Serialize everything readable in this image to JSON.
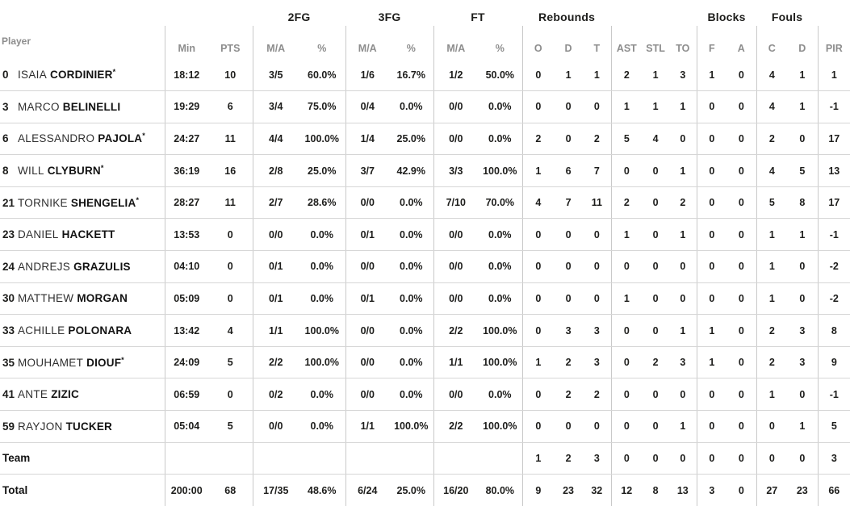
{
  "header": {
    "player_label": "Player",
    "starter_mark": "*",
    "groups": {
      "fg2": "2FG",
      "fg3": "3FG",
      "ft": "FT",
      "rebounds": "Rebounds",
      "blocks": "Blocks",
      "fouls": "Fouls"
    },
    "cols": {
      "min": "Min",
      "pts": "PTS",
      "ma": "M/A",
      "pct": "%",
      "o": "O",
      "d": "D",
      "t": "T",
      "ast": "AST",
      "stl": "STL",
      "to": "TO",
      "f": "F",
      "a": "A",
      "c": "C",
      "d2": "D",
      "pir": "PIR"
    }
  },
  "colors": {
    "dark_text": "#1d1d1b",
    "gray_label": "#8d8d8d",
    "vertical_line": "#c9c9c9",
    "horizontal_line": "#d6d6d6",
    "background": "#ffffff"
  },
  "stat_keys": [
    "min",
    "pts",
    "2fg-ma",
    "2fg-pct",
    "3fg-ma",
    "3fg-pct",
    "ft-ma",
    "ft-pct",
    "reb-o",
    "reb-d",
    "reb-t",
    "ast",
    "stl",
    "to",
    "blk-f",
    "blk-a",
    "foul-c",
    "foul-d",
    "pir"
  ],
  "rows": [
    {
      "type": "player",
      "no": "0",
      "first": "ISAIA",
      "last": "CORDINIER",
      "starter": true,
      "stats": [
        "18:12",
        "10",
        "3/5",
        "60.0%",
        "1/6",
        "16.7%",
        "1/2",
        "50.0%",
        "0",
        "1",
        "1",
        "2",
        "1",
        "3",
        "1",
        "0",
        "4",
        "1",
        "1"
      ]
    },
    {
      "type": "player",
      "no": "3",
      "first": "MARCO",
      "last": "BELINELLI",
      "starter": false,
      "stats": [
        "19:29",
        "6",
        "3/4",
        "75.0%",
        "0/4",
        "0.0%",
        "0/0",
        "0.0%",
        "0",
        "0",
        "0",
        "1",
        "1",
        "1",
        "0",
        "0",
        "4",
        "1",
        "-1"
      ]
    },
    {
      "type": "player",
      "no": "6",
      "first": "ALESSANDRO",
      "last": "PAJOLA",
      "starter": true,
      "stats": [
        "24:27",
        "11",
        "4/4",
        "100.0%",
        "1/4",
        "25.0%",
        "0/0",
        "0.0%",
        "2",
        "0",
        "2",
        "5",
        "4",
        "0",
        "0",
        "0",
        "2",
        "0",
        "17"
      ]
    },
    {
      "type": "player",
      "no": "8",
      "first": "WILL",
      "last": "CLYBURN",
      "starter": true,
      "stats": [
        "36:19",
        "16",
        "2/8",
        "25.0%",
        "3/7",
        "42.9%",
        "3/3",
        "100.0%",
        "1",
        "6",
        "7",
        "0",
        "0",
        "1",
        "0",
        "0",
        "4",
        "5",
        "13"
      ]
    },
    {
      "type": "player",
      "no": "21",
      "first": "TORNIKE",
      "last": "SHENGELIA",
      "starter": true,
      "stats": [
        "28:27",
        "11",
        "2/7",
        "28.6%",
        "0/0",
        "0.0%",
        "7/10",
        "70.0%",
        "4",
        "7",
        "11",
        "2",
        "0",
        "2",
        "0",
        "0",
        "5",
        "8",
        "17"
      ]
    },
    {
      "type": "player",
      "no": "23",
      "first": "DANIEL",
      "last": "HACKETT",
      "starter": false,
      "stats": [
        "13:53",
        "0",
        "0/0",
        "0.0%",
        "0/1",
        "0.0%",
        "0/0",
        "0.0%",
        "0",
        "0",
        "0",
        "1",
        "0",
        "1",
        "0",
        "0",
        "1",
        "1",
        "-1"
      ]
    },
    {
      "type": "player",
      "no": "24",
      "first": "ANDREJS",
      "last": "GRAZULIS",
      "starter": false,
      "stats": [
        "04:10",
        "0",
        "0/1",
        "0.0%",
        "0/0",
        "0.0%",
        "0/0",
        "0.0%",
        "0",
        "0",
        "0",
        "0",
        "0",
        "0",
        "0",
        "0",
        "1",
        "0",
        "-2"
      ]
    },
    {
      "type": "player",
      "no": "30",
      "first": "MATTHEW",
      "last": "MORGAN",
      "starter": false,
      "stats": [
        "05:09",
        "0",
        "0/1",
        "0.0%",
        "0/1",
        "0.0%",
        "0/0",
        "0.0%",
        "0",
        "0",
        "0",
        "1",
        "0",
        "0",
        "0",
        "0",
        "1",
        "0",
        "-2"
      ]
    },
    {
      "type": "player",
      "no": "33",
      "first": "ACHILLE",
      "last": "POLONARA",
      "starter": false,
      "stats": [
        "13:42",
        "4",
        "1/1",
        "100.0%",
        "0/0",
        "0.0%",
        "2/2",
        "100.0%",
        "0",
        "3",
        "3",
        "0",
        "0",
        "1",
        "1",
        "0",
        "2",
        "3",
        "8"
      ]
    },
    {
      "type": "player",
      "no": "35",
      "first": "MOUHAMET",
      "last": "DIOUF",
      "starter": true,
      "stats": [
        "24:09",
        "5",
        "2/2",
        "100.0%",
        "0/0",
        "0.0%",
        "1/1",
        "100.0%",
        "1",
        "2",
        "3",
        "0",
        "2",
        "3",
        "1",
        "0",
        "2",
        "3",
        "9"
      ]
    },
    {
      "type": "player",
      "no": "41",
      "first": "ANTE",
      "last": "ZIZIC",
      "starter": false,
      "stats": [
        "06:59",
        "0",
        "0/2",
        "0.0%",
        "0/0",
        "0.0%",
        "0/0",
        "0.0%",
        "0",
        "2",
        "2",
        "0",
        "0",
        "0",
        "0",
        "0",
        "1",
        "0",
        "-1"
      ]
    },
    {
      "type": "player",
      "no": "59",
      "first": "RAYJON",
      "last": "TUCKER",
      "starter": false,
      "stats": [
        "05:04",
        "5",
        "0/0",
        "0.0%",
        "1/1",
        "100.0%",
        "2/2",
        "100.0%",
        "0",
        "0",
        "0",
        "0",
        "0",
        "1",
        "0",
        "0",
        "0",
        "1",
        "5"
      ]
    },
    {
      "type": "team",
      "label": "Team",
      "stats": [
        "",
        "",
        "",
        "",
        "",
        "",
        "",
        "",
        "1",
        "2",
        "3",
        "0",
        "0",
        "0",
        "0",
        "0",
        "0",
        "0",
        "3"
      ]
    },
    {
      "type": "total",
      "label": "Total",
      "stats": [
        "200:00",
        "68",
        "17/35",
        "48.6%",
        "6/24",
        "25.0%",
        "16/20",
        "80.0%",
        "9",
        "23",
        "32",
        "12",
        "8",
        "13",
        "3",
        "0",
        "27",
        "23",
        "66"
      ]
    }
  ]
}
